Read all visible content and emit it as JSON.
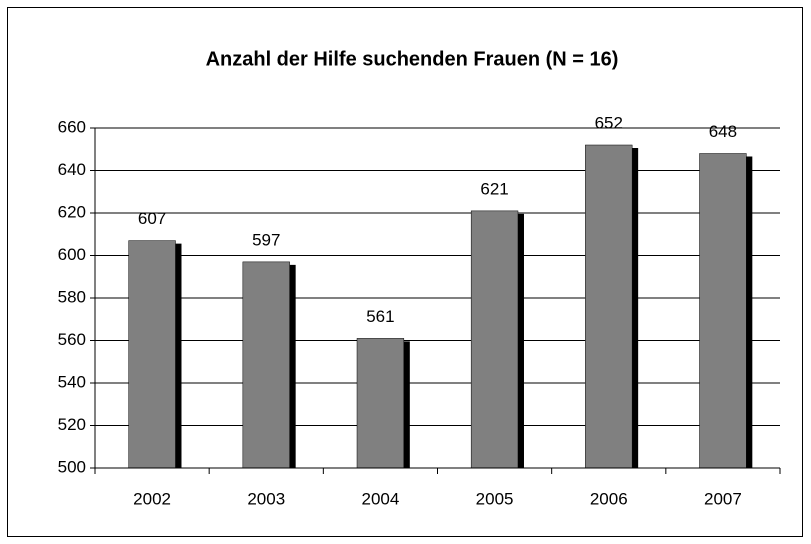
{
  "chart_data": {
    "type": "bar",
    "title": "Anzahl der Hilfe suchenden Frauen (N = 16)",
    "categories": [
      "2002",
      "2003",
      "2004",
      "2005",
      "2006",
      "2007"
    ],
    "values": [
      607,
      597,
      561,
      621,
      652,
      648
    ],
    "color": "#808080",
    "ylim": [
      500,
      660
    ],
    "yticks": [
      500,
      520,
      540,
      560,
      580,
      600,
      620,
      640,
      660
    ],
    "grid": true
  }
}
